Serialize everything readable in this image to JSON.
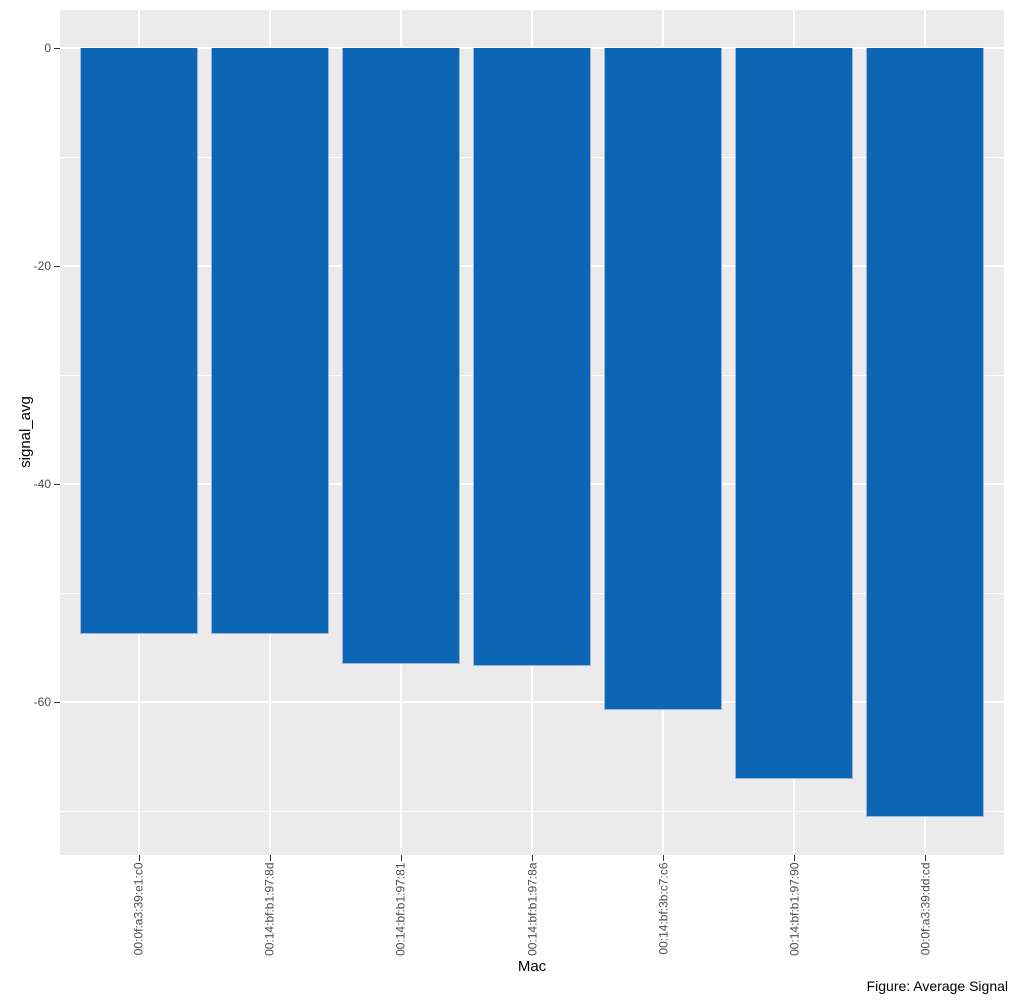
{
  "chart_data": {
    "type": "bar",
    "title": "",
    "xlabel": "Mac",
    "ylabel": "signal_avg",
    "caption": "Figure: Average Signal",
    "categories": [
      "00:0f:a3:39:e1:c0",
      "00:14:bf:b1:97:8d",
      "00:14:bf:b1:97:81",
      "00:14:bf:b1:97:8a",
      "00:14:bf:3b:c7:c6",
      "00:14:bf:b1:97:90",
      "00:0f:a3:39:dd:cd"
    ],
    "values": [
      -53.7,
      -53.7,
      -56.5,
      -56.7,
      -60.7,
      -67.0,
      -70.5
    ],
    "ylim": [
      -74,
      3.5
    ],
    "yticks_major": [
      0,
      -20,
      -40,
      -60
    ],
    "yticks_minor": [
      -10,
      -30,
      -50,
      -70
    ],
    "grid": true,
    "legend": "none",
    "orientation": "vertical-negative",
    "bar_color": "#0d65b5",
    "bar_edge_color": "#9ab8db",
    "panel_bg": "#ebebeb",
    "grid_color": "#ffffff",
    "tick_label_color": "#4d4d4d",
    "axis_title_color": "#000000"
  }
}
